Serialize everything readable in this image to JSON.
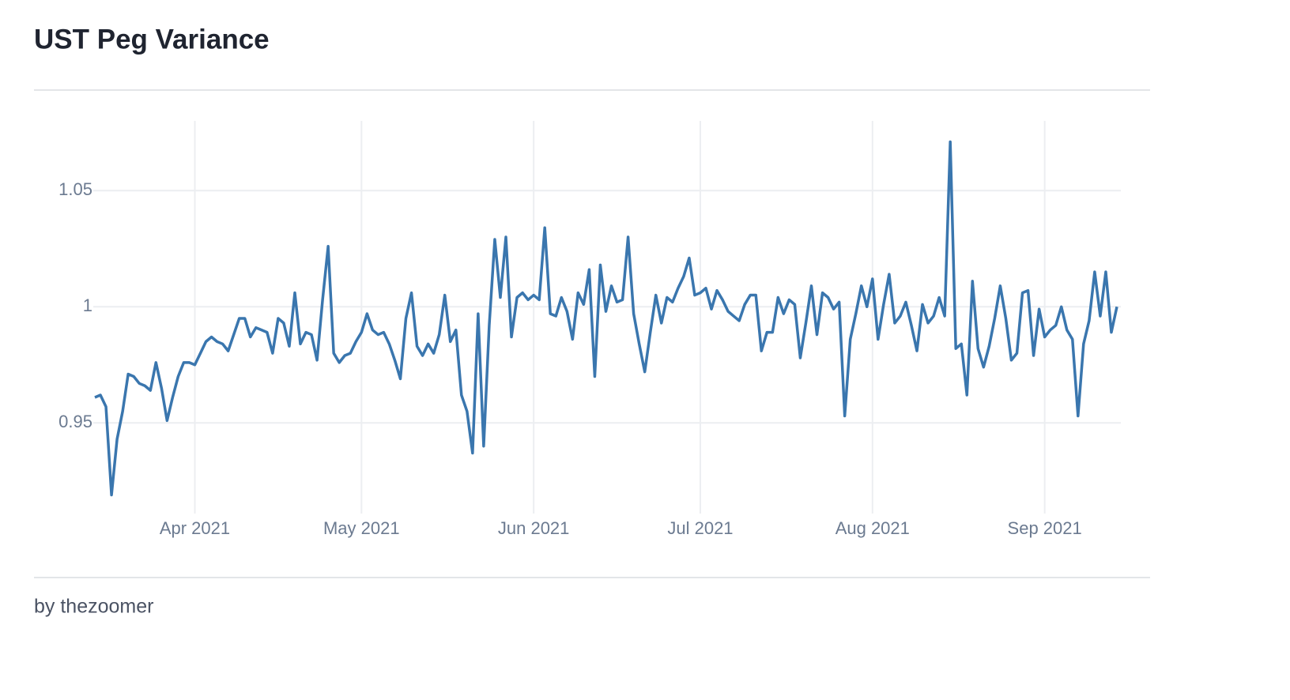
{
  "title": "UST Peg Variance",
  "footer": "by thezoomer",
  "chart_data": {
    "type": "line",
    "color": "#3a76ae",
    "grid": true,
    "x": [
      "2021-03-14",
      "2021-03-15",
      "2021-03-16",
      "2021-03-17",
      "2021-03-18",
      "2021-03-19",
      "2021-03-20",
      "2021-03-21",
      "2021-03-22",
      "2021-03-23",
      "2021-03-24",
      "2021-03-25",
      "2021-03-26",
      "2021-03-27",
      "2021-03-28",
      "2021-03-29",
      "2021-03-30",
      "2021-03-31",
      "2021-04-01",
      "2021-04-02",
      "2021-04-03",
      "2021-04-04",
      "2021-04-05",
      "2021-04-06",
      "2021-04-07",
      "2021-04-08",
      "2021-04-09",
      "2021-04-10",
      "2021-04-11",
      "2021-04-12",
      "2021-04-13",
      "2021-04-14",
      "2021-04-15",
      "2021-04-16",
      "2021-04-17",
      "2021-04-18",
      "2021-04-19",
      "2021-04-20",
      "2021-04-21",
      "2021-04-22",
      "2021-04-23",
      "2021-04-24",
      "2021-04-25",
      "2021-04-26",
      "2021-04-27",
      "2021-04-28",
      "2021-04-29",
      "2021-04-30",
      "2021-05-01",
      "2021-05-02",
      "2021-05-03",
      "2021-05-04",
      "2021-05-05",
      "2021-05-06",
      "2021-05-07",
      "2021-05-08",
      "2021-05-09",
      "2021-05-10",
      "2021-05-11",
      "2021-05-12",
      "2021-05-13",
      "2021-05-14",
      "2021-05-15",
      "2021-05-16",
      "2021-05-17",
      "2021-05-18",
      "2021-05-19",
      "2021-05-20",
      "2021-05-21",
      "2021-05-22",
      "2021-05-23",
      "2021-05-24",
      "2021-05-25",
      "2021-05-26",
      "2021-05-27",
      "2021-05-28",
      "2021-05-29",
      "2021-05-30",
      "2021-05-31",
      "2021-06-01",
      "2021-06-02",
      "2021-06-03",
      "2021-06-04",
      "2021-06-05",
      "2021-06-06",
      "2021-06-07",
      "2021-06-08",
      "2021-06-09",
      "2021-06-10",
      "2021-06-11",
      "2021-06-12",
      "2021-06-13",
      "2021-06-14",
      "2021-06-15",
      "2021-06-16",
      "2021-06-17",
      "2021-06-18",
      "2021-06-19",
      "2021-06-20",
      "2021-06-21",
      "2021-06-22",
      "2021-06-23",
      "2021-06-24",
      "2021-06-25",
      "2021-06-26",
      "2021-06-27",
      "2021-06-28",
      "2021-06-29",
      "2021-06-30",
      "2021-07-01",
      "2021-07-02",
      "2021-07-03",
      "2021-07-04",
      "2021-07-05",
      "2021-07-06",
      "2021-07-07",
      "2021-07-08",
      "2021-07-09",
      "2021-07-10",
      "2021-07-11",
      "2021-07-12",
      "2021-07-13",
      "2021-07-14",
      "2021-07-15",
      "2021-07-16",
      "2021-07-17",
      "2021-07-18",
      "2021-07-19",
      "2021-07-20",
      "2021-07-21",
      "2021-07-22",
      "2021-07-23",
      "2021-07-24",
      "2021-07-25",
      "2021-07-26",
      "2021-07-27",
      "2021-07-28",
      "2021-07-29",
      "2021-07-30",
      "2021-07-31",
      "2021-08-01",
      "2021-08-02",
      "2021-08-03",
      "2021-08-04",
      "2021-08-05",
      "2021-08-06",
      "2021-08-07",
      "2021-08-08",
      "2021-08-09",
      "2021-08-10",
      "2021-08-11",
      "2021-08-12",
      "2021-08-13",
      "2021-08-14",
      "2021-08-15",
      "2021-08-16",
      "2021-08-17",
      "2021-08-18",
      "2021-08-19",
      "2021-08-20",
      "2021-08-21",
      "2021-08-22",
      "2021-08-23",
      "2021-08-24",
      "2021-08-25",
      "2021-08-26",
      "2021-08-27",
      "2021-08-28",
      "2021-08-29",
      "2021-08-30",
      "2021-08-31",
      "2021-09-01",
      "2021-09-02",
      "2021-09-03",
      "2021-09-04",
      "2021-09-05",
      "2021-09-06",
      "2021-09-07",
      "2021-09-08",
      "2021-09-09",
      "2021-09-10",
      "2021-09-11",
      "2021-09-12",
      "2021-09-13",
      "2021-09-14"
    ],
    "values": [
      0.961,
      0.962,
      0.957,
      0.919,
      0.943,
      0.955,
      0.971,
      0.97,
      0.967,
      0.966,
      0.964,
      0.976,
      0.965,
      0.951,
      0.961,
      0.97,
      0.976,
      0.976,
      0.975,
      0.98,
      0.985,
      0.987,
      0.985,
      0.984,
      0.981,
      0.988,
      0.995,
      0.995,
      0.987,
      0.991,
      0.99,
      0.989,
      0.98,
      0.995,
      0.993,
      0.983,
      1.006,
      0.984,
      0.989,
      0.988,
      0.977,
      1.003,
      1.026,
      0.98,
      0.976,
      0.979,
      0.98,
      0.985,
      0.989,
      0.997,
      0.99,
      0.988,
      0.989,
      0.984,
      0.977,
      0.969,
      0.995,
      1.006,
      0.983,
      0.979,
      0.984,
      0.98,
      0.988,
      1.005,
      0.985,
      0.99,
      0.962,
      0.955,
      0.937,
      0.997,
      0.94,
      0.992,
      1.029,
      1.004,
      1.03,
      0.987,
      1.004,
      1.006,
      1.003,
      1.005,
      1.003,
      1.034,
      0.997,
      0.996,
      1.004,
      0.998,
      0.986,
      1.006,
      1.001,
      1.016,
      0.97,
      1.018,
      0.998,
      1.009,
      1.002,
      1.003,
      1.03,
      0.997,
      0.984,
      0.972,
      0.989,
      1.005,
      0.993,
      1.004,
      1.002,
      1.008,
      1.013,
      1.021,
      1.005,
      1.006,
      1.008,
      0.999,
      1.007,
      1.003,
      0.998,
      0.996,
      0.994,
      1.001,
      1.005,
      1.005,
      0.981,
      0.989,
      0.989,
      1.004,
      0.997,
      1.003,
      1.001,
      0.978,
      0.993,
      1.009,
      0.988,
      1.006,
      1.004,
      0.999,
      1.002,
      0.953,
      0.986,
      0.997,
      1.009,
      1.0,
      1.012,
      0.986,
      1.001,
      1.014,
      0.993,
      0.996,
      1.002,
      0.992,
      0.981,
      1.001,
      0.993,
      0.996,
      1.004,
      0.996,
      1.071,
      0.982,
      0.984,
      0.962,
      1.011,
      0.982,
      0.974,
      0.983,
      0.995,
      1.009,
      0.995,
      0.977,
      0.98,
      1.006,
      1.007,
      0.979,
      0.999,
      0.987,
      0.99,
      0.992,
      1.0,
      0.99,
      0.986,
      0.953,
      0.984,
      0.994,
      1.015,
      0.996,
      1.015,
      0.989,
      1.0
    ],
    "xlim": [
      "2021-03-14",
      "2021-09-14"
    ],
    "xticks": [
      {
        "value": "2021-04-01",
        "label": "Apr 2021"
      },
      {
        "value": "2021-05-01",
        "label": "May 2021"
      },
      {
        "value": "2021-06-01",
        "label": "Jun 2021"
      },
      {
        "value": "2021-07-01",
        "label": "Jul 2021"
      },
      {
        "value": "2021-08-01",
        "label": "Aug 2021"
      },
      {
        "value": "2021-09-01",
        "label": "Sep 2021"
      }
    ],
    "ylim": [
      0.911,
      1.08
    ],
    "yticks": [
      0.95,
      1,
      1.05
    ]
  }
}
